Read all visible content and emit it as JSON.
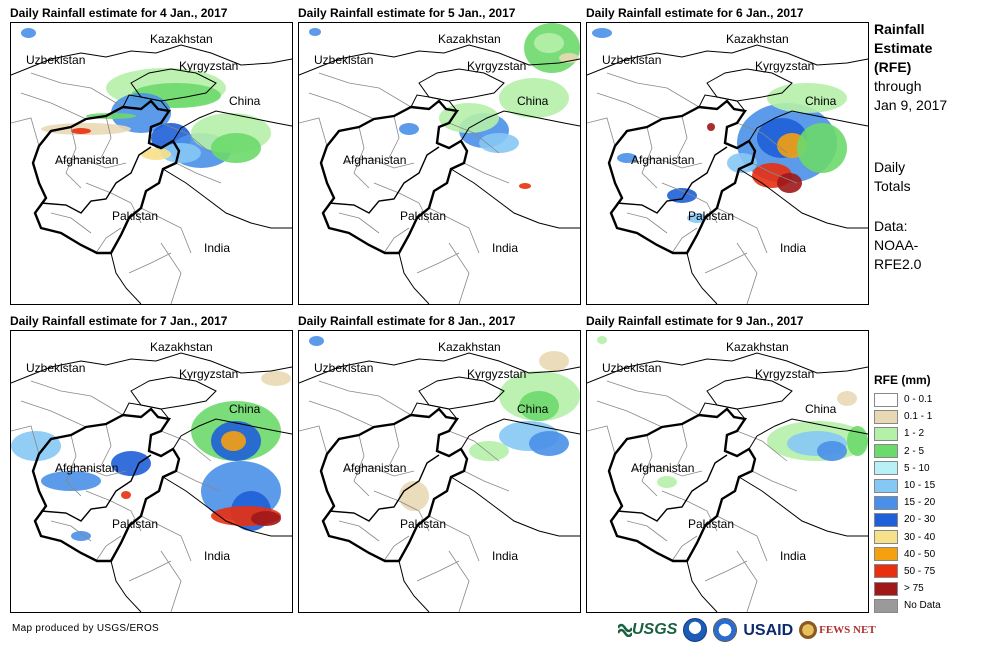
{
  "panels": [
    {
      "title": "Daily Rainfall estimate for 4 Jan., 2017"
    },
    {
      "title": "Daily Rainfall estimate for 5 Jan., 2017"
    },
    {
      "title": "Daily Rainfall estimate for 6 Jan., 2017"
    },
    {
      "title": "Daily Rainfall estimate for 7 Jan., 2017"
    },
    {
      "title": "Daily Rainfall estimate for 8 Jan., 2017"
    },
    {
      "title": "Daily Rainfall estimate for 9 Jan., 2017"
    }
  ],
  "countries": {
    "kazakhstan": "Kazakhstan",
    "uzbekistan": "Uzbekistan",
    "kyrgyzstan": "Kyrgyzstan",
    "china": "China",
    "afghanistan": "Afghanistan",
    "pakistan": "Pakistan",
    "india": "India"
  },
  "sidebar": {
    "title_lines": [
      "Rainfall",
      "Estimate",
      "(RFE)"
    ],
    "through_lines": [
      "through",
      "Jan 9, 2017"
    ],
    "totals_lines": [
      "Daily",
      "Totals"
    ],
    "data_lines": [
      "Data:",
      "NOAA-",
      "RFE2.0"
    ]
  },
  "legend": {
    "title": "RFE (mm)",
    "items": [
      {
        "label": "0 - 0.1",
        "color": "#ffffff"
      },
      {
        "label": "0.1 - 1",
        "color": "#e9d8b4"
      },
      {
        "label": "1 - 2",
        "color": "#b5f0a8"
      },
      {
        "label": "2 - 5",
        "color": "#6cd96c"
      },
      {
        "label": "5 - 10",
        "color": "#b8f0f5"
      },
      {
        "label": "10 - 15",
        "color": "#86c8f5"
      },
      {
        "label": "15 - 20",
        "color": "#4a90e8"
      },
      {
        "label": "20 - 30",
        "color": "#1f5fd8"
      },
      {
        "label": "30 - 40",
        "color": "#f7e08a"
      },
      {
        "label": "40 - 50",
        "color": "#f5a010"
      },
      {
        "label": "50 - 75",
        "color": "#e83010"
      },
      {
        "label": "> 75",
        "color": "#a01818"
      },
      {
        "label": "No Data",
        "color": "#9a9a9a"
      }
    ]
  },
  "credit": "Map produced by USGS/EROS",
  "logos": {
    "usgs": "USGS",
    "usaid": "USAID",
    "fews": "FEWS NET"
  }
}
